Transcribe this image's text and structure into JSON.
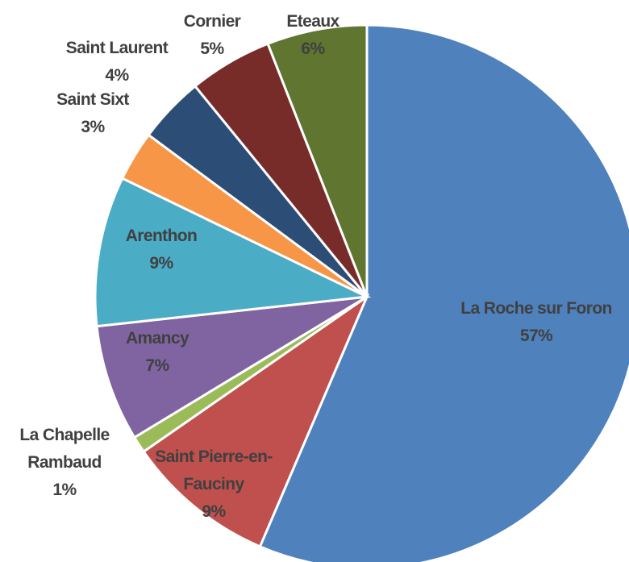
{
  "chart_data": {
    "type": "pie",
    "categories": [
      "La Roche sur Foron",
      "Saint Pierre-en-Fauciny",
      "La Chapelle Rambaud",
      "Amancy",
      "Arenthon",
      "Saint Sixt",
      "Saint Laurent",
      "Cornier",
      "Eteaux"
    ],
    "values": [
      57,
      9,
      1,
      7,
      9,
      3,
      4,
      5,
      6
    ],
    "value_labels": [
      "57%",
      "9%",
      "1%",
      "7%",
      "9%",
      "3%",
      "4%",
      "5%",
      "6%"
    ],
    "colors": [
      "#4f81bd",
      "#c0504d",
      "#9bbb59",
      "#8064a2",
      "#4bacc6",
      "#f79646",
      "#2c4d75",
      "#772c2a",
      "#5f7530"
    ]
  }
}
